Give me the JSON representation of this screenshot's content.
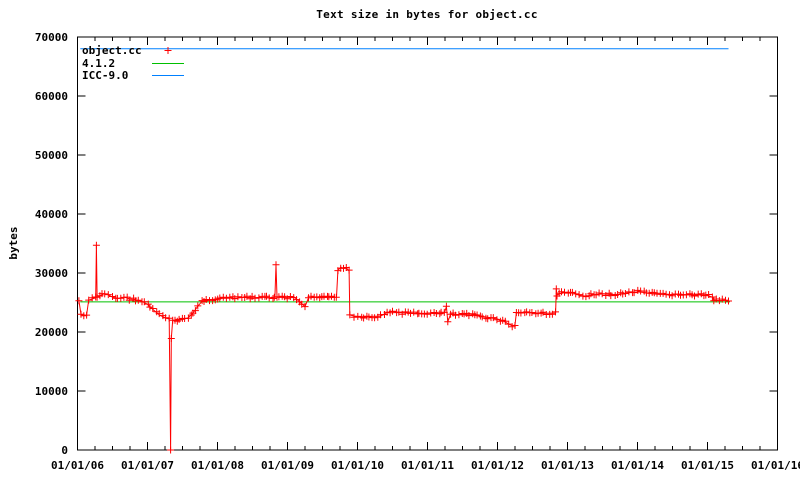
{
  "chart_data": {
    "type": "line",
    "title": "Text size in bytes for object.cc",
    "xlabel": "",
    "ylabel": "bytes",
    "x_tick_labels": [
      "01/01/06",
      "01/01/07",
      "01/01/08",
      "01/01/09",
      "01/01/10",
      "01/01/11",
      "01/01/12",
      "01/01/13",
      "01/01/14",
      "01/01/15",
      "01/01/16"
    ],
    "x_minor_ticks_per_interval": 3,
    "y_tick_values": [
      0,
      10000,
      20000,
      30000,
      40000,
      50000,
      60000,
      70000
    ],
    "ylim": [
      0,
      70000
    ],
    "xlim_years": [
      2006,
      2016
    ],
    "grid": false,
    "legend_position": "top-left-inside",
    "axis_color": "#000000",
    "text_color": "#000000",
    "background_color": "#ffffff",
    "series": [
      {
        "name": "object.cc",
        "color": "#ff0000",
        "style": "linespoints",
        "marker": "plus",
        "points": [
          [
            2006.02,
            25300
          ],
          [
            2006.05,
            23000
          ],
          [
            2006.09,
            22750
          ],
          [
            2006.13,
            22900
          ],
          [
            2006.16,
            25400
          ],
          [
            2006.21,
            25600
          ],
          [
            2006.26,
            25800
          ],
          [
            2006.27,
            34700
          ],
          [
            2006.28,
            25900
          ],
          [
            2006.32,
            26100
          ],
          [
            2006.38,
            26500
          ],
          [
            2006.44,
            26300
          ],
          [
            2006.5,
            25900
          ],
          [
            2006.58,
            25700
          ],
          [
            2006.67,
            25900
          ],
          [
            2006.75,
            25600
          ],
          [
            2006.83,
            25500
          ],
          [
            2006.92,
            25200
          ],
          [
            2007.0,
            24700
          ],
          [
            2007.08,
            23800
          ],
          [
            2007.17,
            22900
          ],
          [
            2007.25,
            22400
          ],
          [
            2007.31,
            22200
          ],
          [
            2007.33,
            0
          ],
          [
            2007.34,
            18900
          ],
          [
            2007.36,
            22000
          ],
          [
            2007.42,
            21900
          ],
          [
            2007.5,
            22100
          ],
          [
            2007.58,
            22400
          ],
          [
            2007.65,
            23200
          ],
          [
            2007.72,
            24400
          ],
          [
            2007.78,
            25200
          ],
          [
            2007.88,
            25500
          ],
          [
            2008.0,
            25600
          ],
          [
            2008.13,
            25800
          ],
          [
            2008.25,
            25700
          ],
          [
            2008.38,
            25900
          ],
          [
            2008.5,
            25800
          ],
          [
            2008.63,
            25900
          ],
          [
            2008.75,
            25800
          ],
          [
            2008.82,
            25900
          ],
          [
            2008.835,
            31400
          ],
          [
            2008.85,
            25900
          ],
          [
            2009.0,
            25800
          ],
          [
            2009.1,
            25900
          ],
          [
            2009.25,
            24300
          ],
          [
            2009.3,
            25800
          ],
          [
            2009.45,
            25900
          ],
          [
            2009.6,
            25800
          ],
          [
            2009.7,
            25900
          ],
          [
            2009.72,
            30400
          ],
          [
            2009.76,
            31000
          ],
          [
            2009.8,
            30800
          ],
          [
            2009.84,
            30900
          ],
          [
            2009.88,
            30300
          ],
          [
            2009.89,
            22900
          ],
          [
            2009.95,
            22700
          ],
          [
            2010.05,
            22600
          ],
          [
            2010.2,
            22650
          ],
          [
            2010.33,
            22700
          ],
          [
            2010.42,
            23300
          ],
          [
            2010.5,
            23500
          ],
          [
            2010.6,
            23300
          ],
          [
            2010.72,
            23200
          ],
          [
            2010.85,
            23100
          ],
          [
            2011.0,
            23200
          ],
          [
            2011.13,
            23100
          ],
          [
            2011.24,
            23200
          ],
          [
            2011.27,
            24300
          ],
          [
            2011.29,
            21750
          ],
          [
            2011.33,
            23000
          ],
          [
            2011.45,
            22950
          ],
          [
            2011.6,
            22900
          ],
          [
            2011.75,
            22700
          ],
          [
            2011.9,
            22400
          ],
          [
            2012.0,
            22200
          ],
          [
            2012.08,
            21900
          ],
          [
            2012.15,
            21400
          ],
          [
            2012.21,
            21050
          ],
          [
            2012.25,
            21200
          ],
          [
            2012.27,
            23300
          ],
          [
            2012.38,
            23350
          ],
          [
            2012.5,
            23250
          ],
          [
            2012.62,
            23150
          ],
          [
            2012.74,
            23200
          ],
          [
            2012.83,
            23200
          ],
          [
            2012.84,
            27300
          ],
          [
            2012.85,
            26300
          ],
          [
            2012.92,
            26600
          ],
          [
            2013.0,
            26750
          ],
          [
            2013.08,
            26700
          ],
          [
            2013.17,
            26200
          ],
          [
            2013.27,
            26050
          ],
          [
            2013.38,
            26300
          ],
          [
            2013.5,
            26450
          ],
          [
            2013.63,
            26350
          ],
          [
            2013.75,
            26400
          ],
          [
            2013.88,
            26700
          ],
          [
            2014.0,
            26800
          ],
          [
            2014.1,
            26700
          ],
          [
            2014.2,
            26500
          ],
          [
            2014.33,
            26350
          ],
          [
            2014.45,
            26300
          ],
          [
            2014.58,
            26400
          ],
          [
            2014.7,
            26300
          ],
          [
            2014.82,
            26250
          ],
          [
            2014.95,
            26300
          ],
          [
            2015.02,
            26100
          ],
          [
            2015.07,
            25900
          ],
          [
            2015.09,
            25400
          ],
          [
            2015.17,
            25300
          ],
          [
            2015.25,
            25350
          ],
          [
            2015.3,
            25350
          ]
        ]
      },
      {
        "name": "4.1.2",
        "color": "#00c000",
        "style": "line",
        "points": [
          [
            2006.04,
            25100
          ],
          [
            2015.32,
            25100
          ]
        ]
      },
      {
        "name": "ICC-9.0",
        "color": "#0080ff",
        "style": "line",
        "points": [
          [
            2006.04,
            68000
          ],
          [
            2015.3,
            68000
          ]
        ]
      }
    ]
  }
}
